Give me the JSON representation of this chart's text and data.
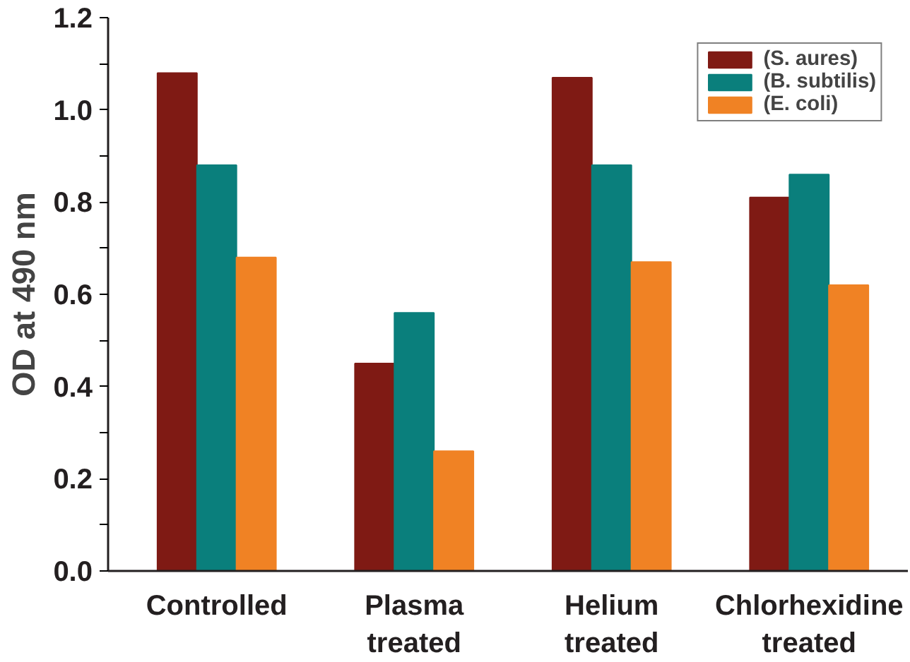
{
  "chart_data": {
    "type": "bar",
    "ylabel": "OD at 490 nm",
    "categories": [
      "Controlled",
      "Plasma\ntreated",
      "Helium\ntreated",
      "Chlorhexidine\ntreated"
    ],
    "series": [
      {
        "name": "(S. aures)",
        "color": "#7f1a14",
        "values": [
          1.08,
          0.45,
          1.07,
          0.81
        ]
      },
      {
        "name": "(B. subtilis)",
        "color": "#0a7f7c",
        "values": [
          0.88,
          0.56,
          0.88,
          0.86
        ]
      },
      {
        "name": "(E. coli)",
        "color": "#f08224",
        "values": [
          0.68,
          0.26,
          0.67,
          0.62
        ]
      }
    ],
    "ylim": [
      0,
      1.2
    ],
    "yticks": [
      {
        "value": 0,
        "label": "0.0"
      },
      {
        "value": 0.1,
        "label": null
      },
      {
        "value": 0.2,
        "label": "0.2"
      },
      {
        "value": 0.3,
        "label": null
      },
      {
        "value": 0.4,
        "label": "0.4"
      },
      {
        "value": 0.5,
        "label": null
      },
      {
        "value": 0.6,
        "label": "0.6"
      },
      {
        "value": 0.7,
        "label": null
      },
      {
        "value": 0.8,
        "label": "0.8"
      },
      {
        "value": 0.9,
        "label": null
      },
      {
        "value": 1.0,
        "label": "1.0"
      },
      {
        "value": 1.1,
        "label": null
      },
      {
        "value": 1.2,
        "label": "1.2"
      }
    ],
    "grid": false,
    "legend": "top right"
  }
}
